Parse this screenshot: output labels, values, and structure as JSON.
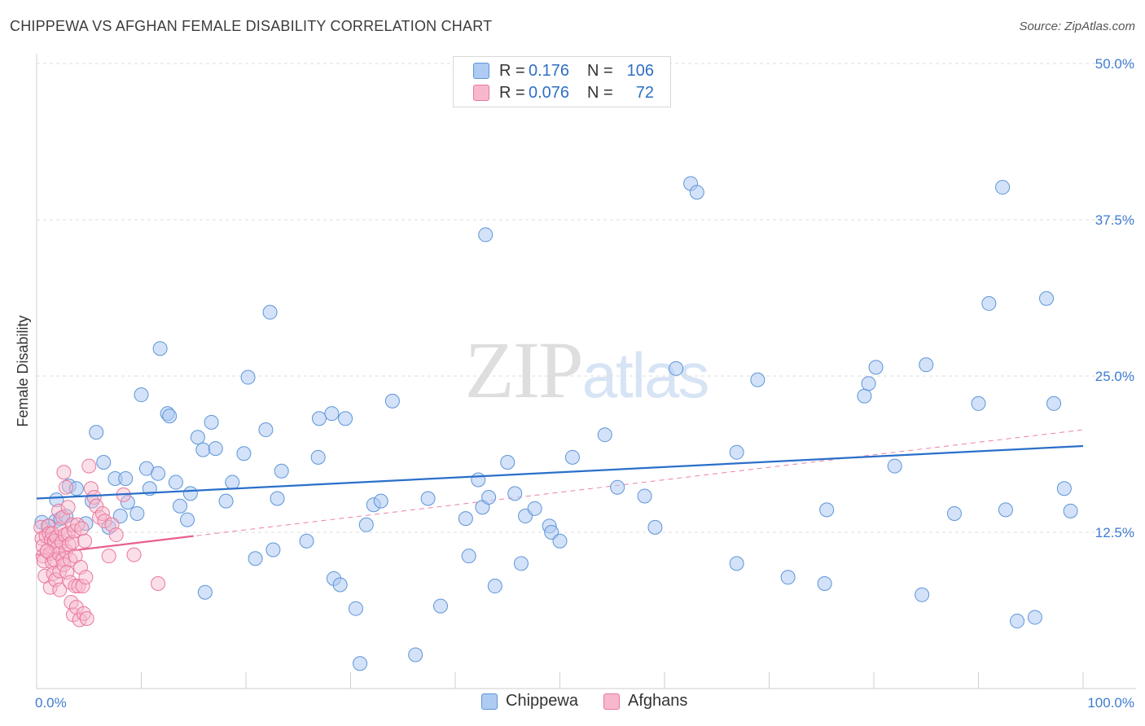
{
  "title": "CHIPPEWA VS AFGHAN FEMALE DISABILITY CORRELATION CHART",
  "source": "Source: ZipAtlas.com",
  "legend": {
    "rows": [
      {
        "r_label": "R =",
        "r_value": "0.176",
        "n_label": "N =",
        "n_value": "106"
      },
      {
        "r_label": "R =",
        "r_value": "0.076",
        "n_label": "N =",
        "n_value": "72"
      }
    ]
  },
  "bottom_legend": [
    "Chippewa",
    "Afghans"
  ],
  "watermark": "ZIPatlas",
  "colors": {
    "chippewa_fill": "#aecbf3",
    "chippewa_stroke": "#5d95d8",
    "chippewa_line": "#2a6fc9",
    "afghan_fill": "#f7b8cd",
    "afghan_stroke": "#e8789d",
    "afghan_line": "#e8608c",
    "tick_label": "#3f7ccf",
    "grid": "#dcdcdc"
  },
  "chart_data": {
    "type": "scatter",
    "title": "CHIPPEWA VS AFGHAN FEMALE DISABILITY CORRELATION CHART",
    "xlabel": "",
    "ylabel": "Female Disability",
    "xlim": [
      0,
      100
    ],
    "ylim": [
      0,
      52
    ],
    "x_tick_labels": [
      {
        "value": 0,
        "label": "0.0%"
      },
      {
        "value": 100,
        "label": "100.0%"
      }
    ],
    "y_tick_labels": [
      {
        "value": 12.5,
        "label": "12.5%"
      },
      {
        "value": 25.0,
        "label": "25.0%"
      },
      {
        "value": 37.5,
        "label": "37.5%"
      },
      {
        "value": 50.0,
        "label": "50.0%"
      }
    ],
    "series": [
      {
        "name": "Chippewa",
        "r": 0.176,
        "n": 106,
        "trend": {
          "x": [
            0,
            100
          ],
          "y": [
            15.2,
            19.4
          ],
          "style": "solid"
        },
        "points": [
          [
            0.5,
            13.3
          ],
          [
            1.2,
            13.0
          ],
          [
            1.8,
            13.4
          ],
          [
            1.9,
            15.1
          ],
          [
            2.3,
            13.6
          ],
          [
            2.8,
            13.8
          ],
          [
            3.1,
            16.2
          ],
          [
            3.8,
            16.0
          ],
          [
            4.7,
            13.2
          ],
          [
            5.3,
            15.0
          ],
          [
            5.7,
            20.5
          ],
          [
            6.4,
            18.1
          ],
          [
            6.9,
            12.9
          ],
          [
            7.5,
            16.8
          ],
          [
            8.0,
            13.8
          ],
          [
            8.5,
            16.8
          ],
          [
            8.7,
            14.9
          ],
          [
            9.6,
            14.0
          ],
          [
            10.0,
            23.5
          ],
          [
            10.5,
            17.6
          ],
          [
            10.8,
            16.0
          ],
          [
            11.6,
            17.2
          ],
          [
            11.8,
            27.2
          ],
          [
            12.5,
            22.0
          ],
          [
            12.7,
            21.8
          ],
          [
            13.3,
            16.5
          ],
          [
            13.7,
            14.6
          ],
          [
            14.4,
            13.5
          ],
          [
            14.7,
            15.6
          ],
          [
            15.4,
            20.1
          ],
          [
            15.9,
            19.1
          ],
          [
            16.1,
            7.7
          ],
          [
            16.7,
            21.3
          ],
          [
            17.1,
            19.2
          ],
          [
            18.1,
            15.0
          ],
          [
            18.7,
            16.5
          ],
          [
            19.8,
            18.8
          ],
          [
            20.2,
            24.9
          ],
          [
            20.9,
            10.4
          ],
          [
            21.9,
            20.7
          ],
          [
            22.3,
            30.1
          ],
          [
            22.6,
            11.1
          ],
          [
            23.0,
            15.2
          ],
          [
            23.4,
            17.4
          ],
          [
            25.8,
            11.8
          ],
          [
            26.9,
            18.5
          ],
          [
            27.0,
            21.6
          ],
          [
            28.2,
            22.0
          ],
          [
            28.4,
            8.8
          ],
          [
            29.0,
            8.3
          ],
          [
            29.5,
            21.6
          ],
          [
            30.5,
            6.4
          ],
          [
            30.9,
            2.0
          ],
          [
            31.5,
            13.1
          ],
          [
            32.2,
            14.7
          ],
          [
            32.9,
            15.0
          ],
          [
            34.0,
            23.0
          ],
          [
            36.2,
            2.7
          ],
          [
            37.4,
            15.2
          ],
          [
            38.6,
            6.6
          ],
          [
            41.0,
            13.6
          ],
          [
            41.3,
            10.6
          ],
          [
            42.2,
            16.7
          ],
          [
            42.6,
            14.5
          ],
          [
            42.9,
            36.3
          ],
          [
            43.2,
            15.3
          ],
          [
            43.8,
            8.2
          ],
          [
            45.0,
            18.1
          ],
          [
            45.7,
            15.6
          ],
          [
            46.3,
            10.0
          ],
          [
            46.7,
            13.8
          ],
          [
            47.6,
            14.4
          ],
          [
            49.0,
            13.0
          ],
          [
            49.2,
            12.5
          ],
          [
            50.0,
            11.8
          ],
          [
            51.2,
            18.5
          ],
          [
            54.3,
            20.3
          ],
          [
            55.5,
            16.1
          ],
          [
            58.1,
            15.4
          ],
          [
            59.1,
            12.9
          ],
          [
            61.1,
            25.6
          ],
          [
            62.5,
            40.4
          ],
          [
            63.1,
            39.7
          ],
          [
            66.9,
            10.0
          ],
          [
            66.9,
            18.9
          ],
          [
            68.9,
            24.7
          ],
          [
            71.8,
            8.9
          ],
          [
            75.3,
            8.4
          ],
          [
            75.5,
            14.3
          ],
          [
            79.1,
            23.4
          ],
          [
            79.5,
            24.4
          ],
          [
            80.2,
            25.7
          ],
          [
            82.0,
            17.8
          ],
          [
            84.6,
            7.5
          ],
          [
            85.0,
            25.9
          ],
          [
            87.7,
            14.0
          ],
          [
            90.0,
            22.8
          ],
          [
            91.0,
            30.8
          ],
          [
            92.3,
            40.1
          ],
          [
            92.6,
            14.3
          ],
          [
            93.7,
            5.4
          ],
          [
            95.4,
            5.7
          ],
          [
            96.5,
            31.2
          ],
          [
            97.2,
            22.8
          ],
          [
            98.2,
            16.0
          ],
          [
            98.8,
            14.2
          ]
        ]
      },
      {
        "name": "Afghans",
        "r": 0.076,
        "n": 72,
        "trend_solid": {
          "x": [
            0,
            15
          ],
          "y": [
            10.7,
            12.2
          ],
          "style": "solid"
        },
        "trend_dashed": {
          "x": [
            0,
            100
          ],
          "y": [
            10.7,
            20.7
          ],
          "style": "dashed"
        },
        "points": [
          [
            0.4,
            12.9
          ],
          [
            0.5,
            12.0
          ],
          [
            0.6,
            11.4
          ],
          [
            0.6,
            10.6
          ],
          [
            0.7,
            10.2
          ],
          [
            0.8,
            9.0
          ],
          [
            0.9,
            12.2
          ],
          [
            1.0,
            11.0
          ],
          [
            1.1,
            13.0
          ],
          [
            1.2,
            12.4
          ],
          [
            1.3,
            10.8
          ],
          [
            1.3,
            8.1
          ],
          [
            1.4,
            11.9
          ],
          [
            1.5,
            12.4
          ],
          [
            1.5,
            10.1
          ],
          [
            1.6,
            9.2
          ],
          [
            1.7,
            11.8
          ],
          [
            1.7,
            10.3
          ],
          [
            1.8,
            8.7
          ],
          [
            1.9,
            12.1
          ],
          [
            2.0,
            11.3
          ],
          [
            2.1,
            14.2
          ],
          [
            2.1,
            10.8
          ],
          [
            2.2,
            9.4
          ],
          [
            2.2,
            7.9
          ],
          [
            2.3,
            12.8
          ],
          [
            2.4,
            11.7
          ],
          [
            2.5,
            13.7
          ],
          [
            2.5,
            10.3
          ],
          [
            2.6,
            9.9
          ],
          [
            2.6,
            17.3
          ],
          [
            2.7,
            12.3
          ],
          [
            2.8,
            16.1
          ],
          [
            2.8,
            11.0
          ],
          [
            2.9,
            9.3
          ],
          [
            3.0,
            12.4
          ],
          [
            3.0,
            14.5
          ],
          [
            3.1,
            11.5
          ],
          [
            3.2,
            10.3
          ],
          [
            3.2,
            8.5
          ],
          [
            3.3,
            6.9
          ],
          [
            3.4,
            13.1
          ],
          [
            3.4,
            11.7
          ],
          [
            3.5,
            5.9
          ],
          [
            3.6,
            12.6
          ],
          [
            3.7,
            10.6
          ],
          [
            3.7,
            8.2
          ],
          [
            3.8,
            6.5
          ],
          [
            3.9,
            13.1
          ],
          [
            4.0,
            8.2
          ],
          [
            4.1,
            5.5
          ],
          [
            4.2,
            9.7
          ],
          [
            4.3,
            12.8
          ],
          [
            4.4,
            8.2
          ],
          [
            4.5,
            6.0
          ],
          [
            4.6,
            11.8
          ],
          [
            4.7,
            8.9
          ],
          [
            4.8,
            5.6
          ],
          [
            5.0,
            17.8
          ],
          [
            5.2,
            16.0
          ],
          [
            5.5,
            15.3
          ],
          [
            5.7,
            14.6
          ],
          [
            6.0,
            13.7
          ],
          [
            6.3,
            14.0
          ],
          [
            6.5,
            13.4
          ],
          [
            6.9,
            10.6
          ],
          [
            7.2,
            13.1
          ],
          [
            7.6,
            12.3
          ],
          [
            8.3,
            15.5
          ],
          [
            9.3,
            10.7
          ],
          [
            11.6,
            8.4
          ],
          [
            1.0,
            11.0
          ]
        ]
      }
    ]
  }
}
